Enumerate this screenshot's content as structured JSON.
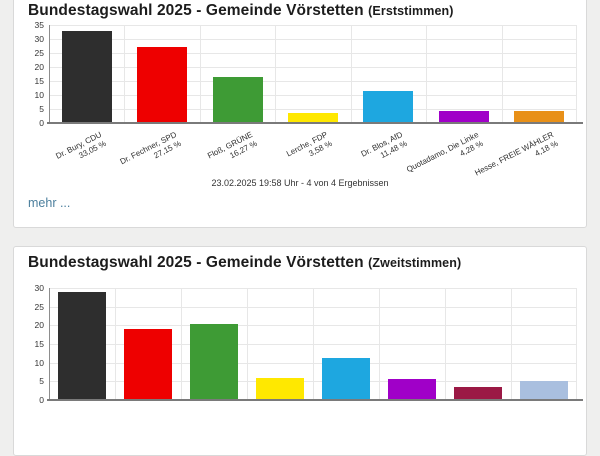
{
  "cards": [
    {
      "title_main": "Bundestagswahl 2025 - Gemeinde Vörstetten",
      "title_suffix": "(Erststimmen)",
      "status_line": "23.02.2025 19:58 Uhr - 4 von 4 Ergebnissen",
      "more_link_label": "mehr ..."
    },
    {
      "title_main": "Bundestagswahl 2025 - Gemeinde Vörstetten",
      "title_suffix": "(Zweitstimmen)"
    }
  ],
  "chart_data": [
    {
      "type": "bar",
      "title": "Bundestagswahl 2025 - Gemeinde Vörstetten (Erststimmen)",
      "categories": [
        "Dr. Bury, CDU",
        "Dr. Fechner, SPD",
        "Floß, GRÜNE",
        "Lerche, FDP",
        "Dr. Blos, AfD",
        "Quotadamo, Die Linke",
        "Hesse, FREIE WÄHLER"
      ],
      "data_labels": [
        "33,05 %",
        "27,15 %",
        "16,27 %",
        "3,58 %",
        "11,48 %",
        "4,28 %",
        "4,18 %"
      ],
      "values": [
        33.05,
        27.15,
        16.27,
        3.58,
        11.48,
        4.28,
        4.18
      ],
      "colors": [
        "#2e2e2e",
        "#ee0000",
        "#3e9b35",
        "#ffe800",
        "#1ea7e0",
        "#a000c8",
        "#e89018"
      ],
      "ylim": [
        0,
        35
      ],
      "ytick_step": 5,
      "grid": true,
      "legend": false,
      "xaxis_labels_visible": true
    },
    {
      "type": "bar",
      "title": "Bundestagswahl 2025 - Gemeinde Vörstetten (Zweitstimmen)",
      "categories": null,
      "values": [
        28.9,
        18.9,
        20.4,
        6.0,
        11.3,
        5.7,
        3.6,
        5.0
      ],
      "colors": [
        "#2e2e2e",
        "#ee0000",
        "#3e9b35",
        "#ffe800",
        "#1ea7e0",
        "#a000c8",
        "#9b1945",
        "#a9bfdf"
      ],
      "ylim": [
        0,
        30
      ],
      "ytick_step": 5,
      "grid": true,
      "legend": false,
      "xaxis_labels_visible": false
    }
  ],
  "colors": {
    "page_background": "#efefee",
    "card_background": "#ffffff",
    "card_border": "#d9d9d9",
    "title_text": "#1c1c1c",
    "link": "#4c7f9d",
    "axis": "#7a7a7a",
    "gridline": "#e7e7e7"
  }
}
